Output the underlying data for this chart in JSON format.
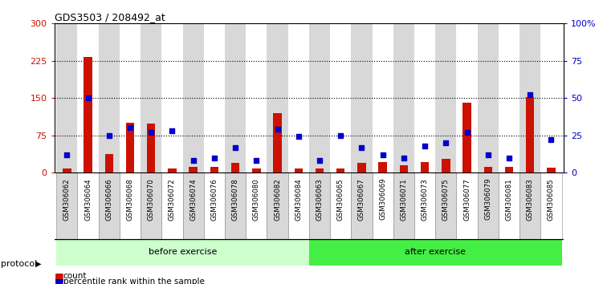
{
  "title": "GDS3503 / 208492_at",
  "samples": [
    "GSM306062",
    "GSM306064",
    "GSM306066",
    "GSM306068",
    "GSM306070",
    "GSM306072",
    "GSM306074",
    "GSM306076",
    "GSM306078",
    "GSM306080",
    "GSM306082",
    "GSM306084",
    "GSM306063",
    "GSM306065",
    "GSM306067",
    "GSM306069",
    "GSM306071",
    "GSM306073",
    "GSM306075",
    "GSM306077",
    "GSM306079",
    "GSM306081",
    "GSM306083",
    "GSM306085"
  ],
  "count": [
    8,
    232,
    38,
    100,
    98,
    8,
    12,
    12,
    20,
    8,
    120,
    8,
    8,
    8,
    20,
    22,
    15,
    22,
    28,
    140,
    12,
    12,
    152,
    10
  ],
  "percentile": [
    12,
    50,
    25,
    30,
    27,
    28,
    8,
    10,
    17,
    8,
    29,
    24,
    8,
    25,
    17,
    12,
    10,
    18,
    20,
    27,
    12,
    10,
    52,
    22
  ],
  "n_before": 12,
  "ylim_left": [
    0,
    300
  ],
  "ylim_right": [
    0,
    100
  ],
  "yticks_left": [
    0,
    75,
    150,
    225,
    300
  ],
  "yticks_right": [
    0,
    25,
    50,
    75,
    100
  ],
  "grid_lines": [
    75,
    150,
    225
  ],
  "bar_color": "#cc1100",
  "dot_color": "#0000cc",
  "col_bg": "#d8d8d8",
  "col_bg_alt": "#ffffff",
  "before_bg": "#ccffcc",
  "after_bg": "#44ee44",
  "before_label": "before exercise",
  "after_label": "after exercise",
  "protocol_label": "protocol",
  "legend_count": "count",
  "legend_pct": "percentile rank within the sample"
}
